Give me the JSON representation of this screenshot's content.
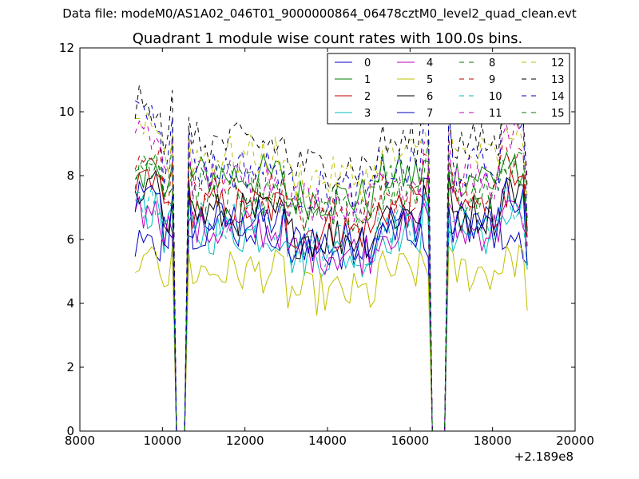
{
  "suptitle": "Data file: modeM0/AS1A02_046T01_9000000864_06478cztM0_level2_quad_clean.evt",
  "chart_data": {
    "type": "line",
    "title": "Quadrant 1 module wise count rates with 100.0s bins.",
    "xlabel": "",
    "ylabel": "",
    "xlim": [
      8000,
      20000
    ],
    "ylim": [
      0,
      12
    ],
    "x_offset_label": "+2.189e8",
    "x_ticks": [
      8000,
      10000,
      12000,
      14000,
      16000,
      18000,
      20000
    ],
    "y_ticks": [
      0,
      2,
      4,
      6,
      8,
      10,
      12
    ],
    "grid": false,
    "legend_position": "top-right",
    "legend_columns": 4,
    "x_range": [
      9340,
      18840
    ],
    "bin_width_s": 100,
    "gaps": [
      [
        10300,
        10560
      ],
      [
        16460,
        16860
      ]
    ],
    "series": [
      {
        "name": "0",
        "color": "#0000bf",
        "style": "solid",
        "level": 6.6,
        "edge": 5.7
      },
      {
        "name": "1",
        "color": "#007f00",
        "style": "solid",
        "level": 8.0,
        "edge": 8.2
      },
      {
        "name": "2",
        "color": "#bf0000",
        "style": "solid",
        "level": 7.0,
        "edge": 7.6
      },
      {
        "name": "3",
        "color": "#00bfbf",
        "style": "solid",
        "level": 6.2,
        "edge": 6.9
      },
      {
        "name": "4",
        "color": "#bf00bf",
        "style": "solid",
        "level": 6.3,
        "edge": 6.8
      },
      {
        "name": "5",
        "color": "#bfbf00",
        "style": "solid",
        "level": 5.0,
        "edge": 5.3
      },
      {
        "name": "6",
        "color": "#000000",
        "style": "solid",
        "level": 6.8,
        "edge": 7.6
      },
      {
        "name": "7",
        "color": "#0000bf",
        "style": "solid",
        "level": 6.4,
        "edge": 7.4
      },
      {
        "name": "8",
        "color": "#007f00",
        "style": "dashed",
        "level": 7.7,
        "edge": 8.6
      },
      {
        "name": "9",
        "color": "#bf0000",
        "style": "dashed",
        "level": 7.5,
        "edge": 8.4
      },
      {
        "name": "10",
        "color": "#00bfbf",
        "style": "dashed",
        "level": 6.5,
        "edge": 7.2
      },
      {
        "name": "11",
        "color": "#bf00bf",
        "style": "dashed",
        "level": 7.9,
        "edge": 9.2
      },
      {
        "name": "12",
        "color": "#bfbf00",
        "style": "dashed",
        "level": 8.6,
        "edge": 9.5
      },
      {
        "name": "13",
        "color": "#000000",
        "style": "dashed",
        "level": 9.0,
        "edge": 10.3
      },
      {
        "name": "14",
        "color": "#0000bf",
        "style": "dashed",
        "level": 8.2,
        "edge": 9.9
      },
      {
        "name": "15",
        "color": "#007f00",
        "style": "dashed",
        "level": 7.4,
        "edge": 8.0
      }
    ]
  }
}
